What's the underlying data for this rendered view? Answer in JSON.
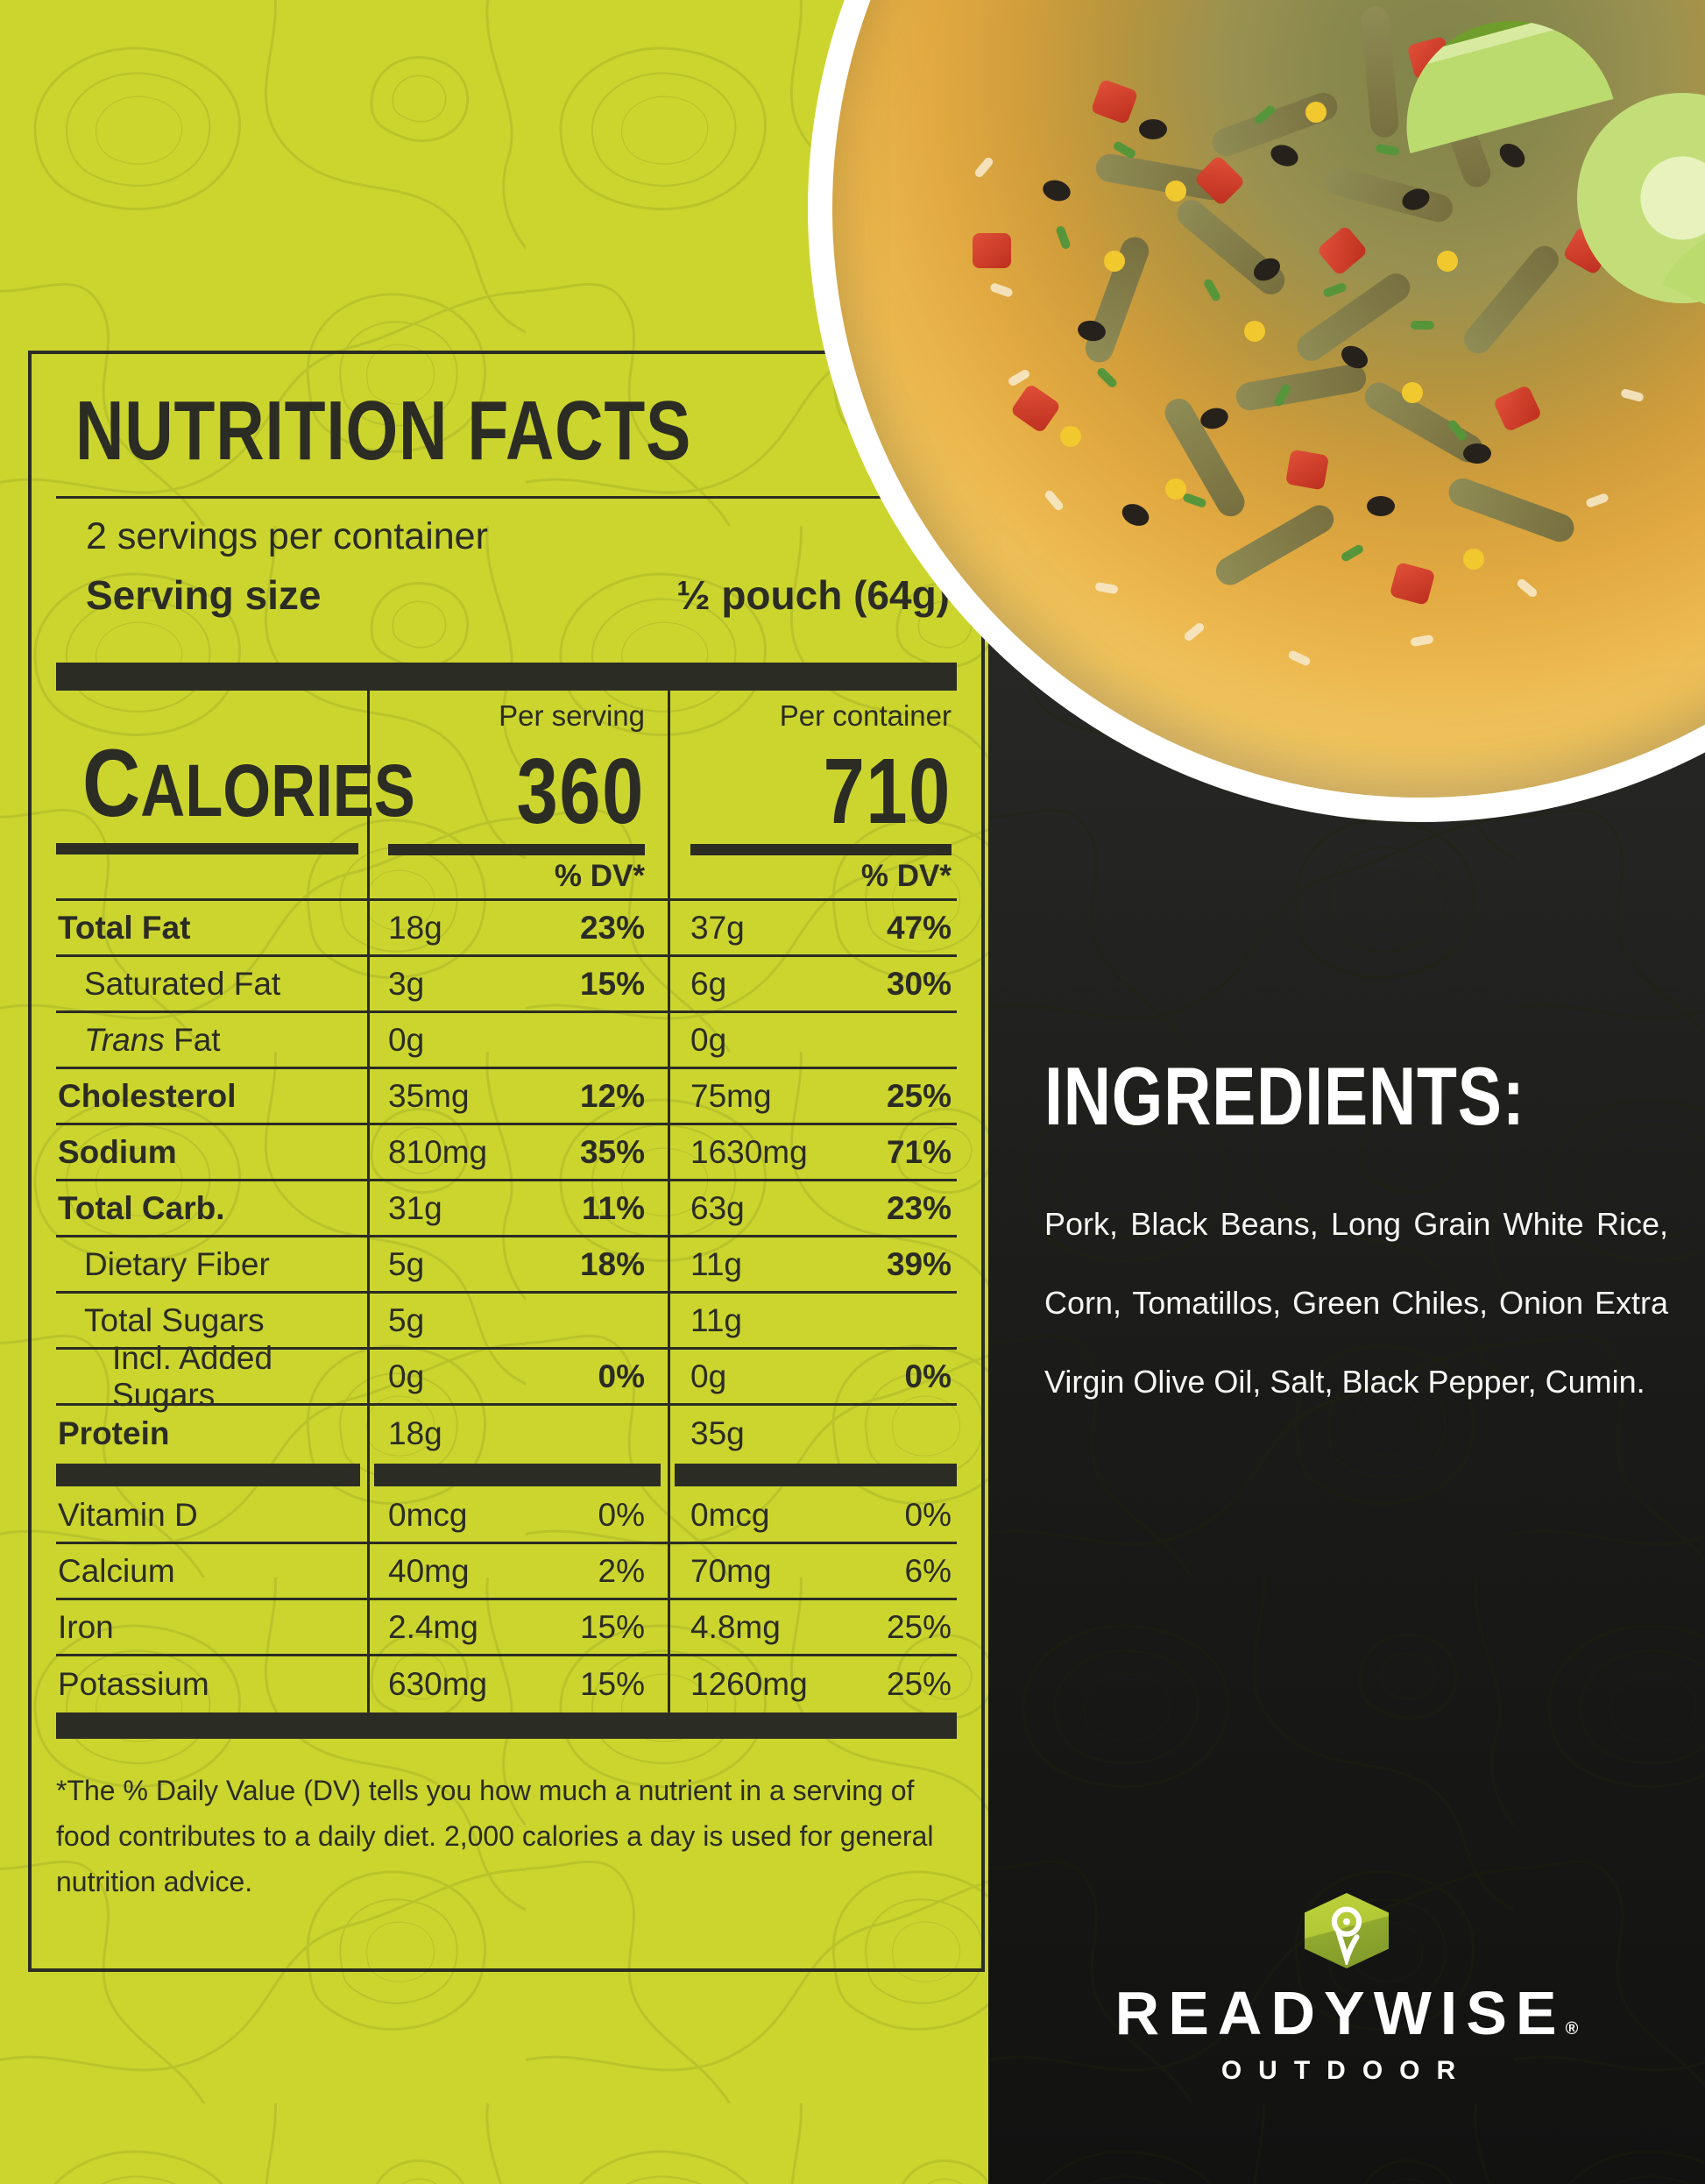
{
  "label": {
    "title": "NUTRITION FACTS",
    "servings_per_container": "2 servings per container",
    "serving_size_label": "Serving size",
    "serving_size_value": "½ pouch (64g)",
    "calories_label": "Calories",
    "per_serving_label": "Per serving",
    "per_container_label": "Per container",
    "calories": {
      "per_serving": "360",
      "per_container": "710"
    },
    "dv_header": "% DV*",
    "rows": [
      {
        "label": "Total Fat",
        "bold": true,
        "indent": 0,
        "serving": {
          "amount": "18g",
          "dv": "23%"
        },
        "container": {
          "amount": "37g",
          "dv": "47%"
        },
        "dv_bold": true
      },
      {
        "label": "Saturated Fat",
        "bold": false,
        "indent": 1,
        "serving": {
          "amount": "3g",
          "dv": "15%"
        },
        "container": {
          "amount": "6g",
          "dv": "30%"
        },
        "dv_bold": true
      },
      {
        "label": "Trans Fat",
        "italic_first_word": true,
        "bold": false,
        "indent": 1,
        "serving": {
          "amount": "0g",
          "dv": ""
        },
        "container": {
          "amount": "0g",
          "dv": ""
        },
        "dv_bold": false
      },
      {
        "label": "Cholesterol",
        "bold": true,
        "indent": 0,
        "serving": {
          "amount": "35mg",
          "dv": "12%"
        },
        "container": {
          "amount": "75mg",
          "dv": "25%"
        },
        "dv_bold": true
      },
      {
        "label": "Sodium",
        "bold": true,
        "indent": 0,
        "serving": {
          "amount": "810mg",
          "dv": "35%"
        },
        "container": {
          "amount": "1630mg",
          "dv": "71%"
        },
        "dv_bold": true
      },
      {
        "label": "Total Carb.",
        "bold": true,
        "indent": 0,
        "serving": {
          "amount": "31g",
          "dv": "11%"
        },
        "container": {
          "amount": "63g",
          "dv": "23%"
        },
        "dv_bold": true
      },
      {
        "label": "Dietary Fiber",
        "bold": false,
        "indent": 1,
        "serving": {
          "amount": "5g",
          "dv": "18%"
        },
        "container": {
          "amount": "11g",
          "dv": "39%"
        },
        "dv_bold": true
      },
      {
        "label": "Total Sugars",
        "bold": false,
        "indent": 1,
        "serving": {
          "amount": "5g",
          "dv": ""
        },
        "container": {
          "amount": "11g",
          "dv": ""
        },
        "dv_bold": false
      },
      {
        "label": "Incl. Added Sugars",
        "bold": false,
        "indent": 2,
        "serving": {
          "amount": "0g",
          "dv": "0%"
        },
        "container": {
          "amount": "0g",
          "dv": "0%"
        },
        "dv_bold": true
      },
      {
        "label": "Protein",
        "bold": true,
        "indent": 0,
        "serving": {
          "amount": "18g",
          "dv": ""
        },
        "container": {
          "amount": "35g",
          "dv": ""
        },
        "dv_bold": false,
        "thick_bar_after": true
      },
      {
        "label": "Vitamin D",
        "bold": false,
        "indent": 0,
        "serving": {
          "amount": "0mcg",
          "dv": "0%"
        },
        "container": {
          "amount": "0mcg",
          "dv": "0%"
        },
        "dv_bold": false
      },
      {
        "label": "Calcium",
        "bold": false,
        "indent": 0,
        "serving": {
          "amount": "40mg",
          "dv": "2%"
        },
        "container": {
          "amount": "70mg",
          "dv": "6%"
        },
        "dv_bold": false
      },
      {
        "label": "Iron",
        "bold": false,
        "indent": 0,
        "serving": {
          "amount": "2.4mg",
          "dv": "15%"
        },
        "container": {
          "amount": "4.8mg",
          "dv": "25%"
        },
        "dv_bold": false
      },
      {
        "label": "Potassium",
        "bold": false,
        "indent": 0,
        "serving": {
          "amount": "630mg",
          "dv": "15%"
        },
        "container": {
          "amount": "1260mg",
          "dv": "25%"
        },
        "dv_bold": false,
        "last": true
      }
    ],
    "footnote": "*The % Daily Value (DV) tells you how much a nutrient in a serving of food contributes to a daily diet. 2,000 calories a day is used for general nutrition advice."
  },
  "ingredients": {
    "heading": "INGREDIENTS:",
    "text": "Pork, Black Beans, Long Grain White Rice, Corn, Tomatillos, Green Chiles, Onion Extra Virgin Olive Oil, Salt, Black Pepper, Cumin."
  },
  "brand": {
    "name": "READYWISE",
    "registered": "®",
    "subtitle": "OUTDOOR",
    "logo_icon": "location-pin-hexagon-icon"
  },
  "photo": {
    "description": "bowl of shredded pork over seasoned rice with black beans, red peppers, corn, cilantro and lime wedges"
  },
  "colors": {
    "background_green": "#cbd52e",
    "panel_dark": "#1b1b19",
    "ink": "#2b2c24",
    "white": "#ffffff",
    "logo_green_light": "#bdd23a",
    "logo_green_dark": "#7f982a"
  }
}
